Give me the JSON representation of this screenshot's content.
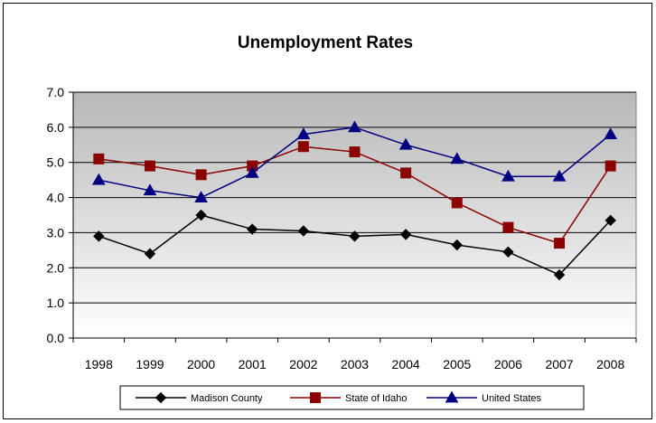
{
  "chart_data": {
    "type": "line",
    "title": "Unemployment Rates",
    "xlabel": "",
    "ylabel": "",
    "x": [
      "1998",
      "1999",
      "2000",
      "2001",
      "2002",
      "2003",
      "2004",
      "2005",
      "2006",
      "2007",
      "2008"
    ],
    "ylim": [
      0,
      7
    ],
    "yticks": [
      "0.0",
      "1.0",
      "2.0",
      "3.0",
      "4.0",
      "5.0",
      "6.0",
      "7.0"
    ],
    "grid": true,
    "legend_position": "bottom",
    "series": [
      {
        "name": "Madison County",
        "marker": "diamond",
        "color": "#000000",
        "values": [
          2.9,
          2.4,
          3.5,
          3.1,
          3.05,
          2.9,
          2.95,
          2.65,
          2.45,
          1.8,
          3.35
        ]
      },
      {
        "name": "State of Idaho",
        "marker": "square",
        "color": "#8B0000",
        "values": [
          5.1,
          4.9,
          4.65,
          4.9,
          5.45,
          5.3,
          4.7,
          3.85,
          3.15,
          2.7,
          4.9
        ]
      },
      {
        "name": "United States",
        "marker": "triangle",
        "color": "#000080",
        "values": [
          4.5,
          4.2,
          4.0,
          4.7,
          5.8,
          6.0,
          5.5,
          5.1,
          4.6,
          4.6,
          5.8
        ]
      }
    ]
  }
}
